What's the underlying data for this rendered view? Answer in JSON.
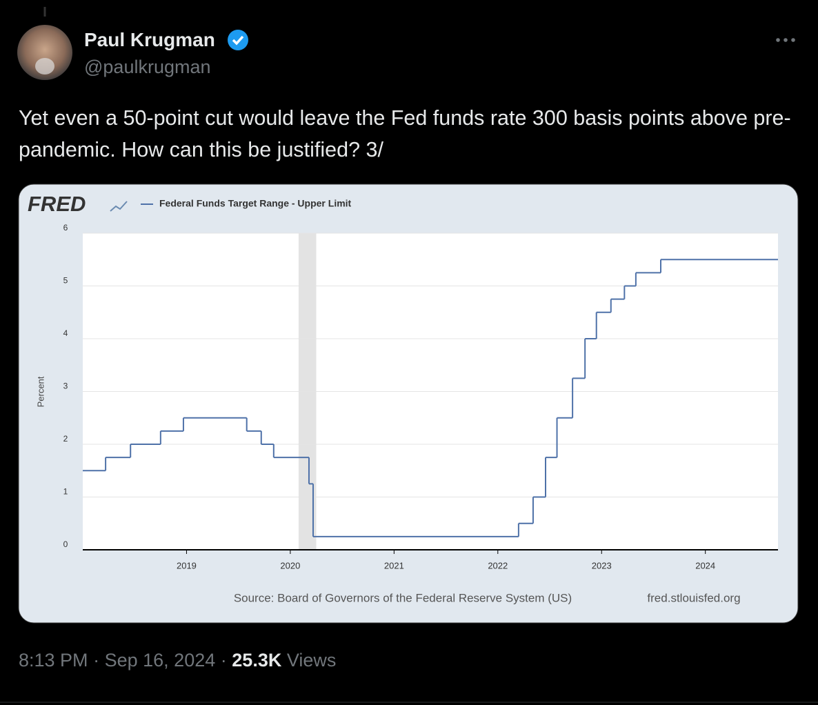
{
  "author": {
    "name": "Paul Krugman",
    "handle": "@paulkrugman"
  },
  "tweet": {
    "text": "Yet even a 50-point cut would leave the Fed funds rate 300 basis points above pre-pandemic. How can this be justified? 3/",
    "time": "8:13 PM",
    "separator": "·",
    "date": "Sep 16, 2024",
    "views": "25.3K",
    "views_label": "Views"
  },
  "chart_data": {
    "type": "line",
    "step": "post",
    "logo": "FRED",
    "ylabel": "Percent",
    "source": "Source: Board of Governors of the Federal Reserve System (US)",
    "url": "fred.stlouisfed.org",
    "x": [
      2018.0,
      2018.22,
      2018.46,
      2018.75,
      2018.97,
      2019.58,
      2019.72,
      2019.84,
      2020.18,
      2020.22,
      2022.2,
      2022.34,
      2022.46,
      2022.57,
      2022.72,
      2022.84,
      2022.95,
      2023.09,
      2023.22,
      2023.33,
      2023.57,
      2024.7
    ],
    "series": [
      {
        "name": "Federal Funds Target Range - Upper Limit",
        "color": "#4e71a8",
        "values": [
          1.5,
          1.75,
          2.0,
          2.25,
          2.5,
          2.25,
          2.0,
          1.75,
          1.25,
          0.25,
          0.5,
          1.0,
          1.75,
          2.5,
          3.25,
          4.0,
          4.5,
          4.75,
          5.0,
          5.25,
          5.5,
          5.5
        ]
      }
    ],
    "shaded_periods": [
      {
        "start": 2020.08,
        "end": 2020.25
      }
    ],
    "xlim": [
      2018.0,
      2024.7
    ],
    "xticks": [
      2019,
      2020,
      2021,
      2022,
      2023,
      2024
    ],
    "ylim": [
      0,
      6
    ],
    "yticks": [
      0,
      1,
      2,
      3,
      4,
      5,
      6
    ],
    "grid": true
  }
}
